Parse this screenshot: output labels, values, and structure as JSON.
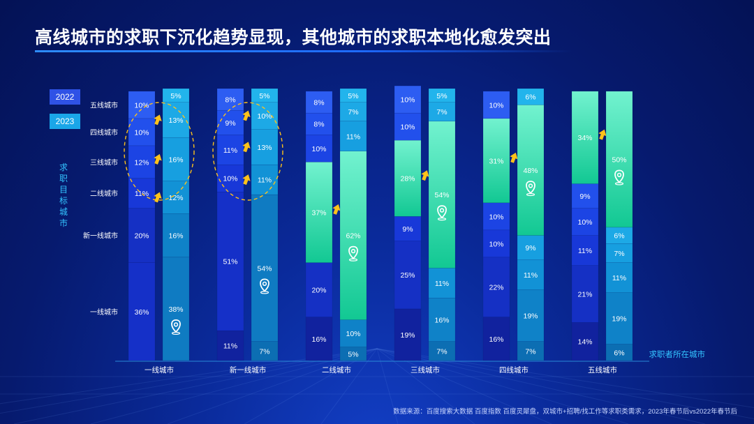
{
  "title": "高线城市的求职下沉化趋势显现，其他城市的求职本地化愈发突出",
  "source": "数据来源：百度搜索大数据 百度指数 百度灵犀盘，双城市+招聘/找工作等求职类需求，2023年春节后vs2022年春节后",
  "legend": {
    "y2022": "2022",
    "y2023": "2023"
  },
  "y_axis_title": "求职目标城市",
  "x_axis_title": "求职者所在城市",
  "colors": {
    "c2022_dark": "#1227b8",
    "c2022_light": "#3a5ff0",
    "c2023_dark": "#0d7bc6",
    "c2023_light": "#22b4ee",
    "local_top": "#72f2cf",
    "local_bottom": "#12c893",
    "arrow": "#ffc21a",
    "circle": "#ffc21a"
  },
  "chart_data": {
    "type": "stacked_bar_100",
    "title": "高线城市的求职下沉化趋势显现，其他城市的求职本地化愈发突出",
    "xlabel": "求职者所在城市",
    "ylabel": "求职目标城市",
    "categories": [
      "一线城市",
      "新一线城市",
      "二线城市",
      "三线城市",
      "四线城市",
      "五线城市"
    ],
    "stack_segments": [
      "一线城市",
      "新一线城市",
      "二线城市",
      "三线城市",
      "四线城市",
      "五线城市"
    ],
    "series": [
      {
        "name": "2022",
        "values": [
          [
            36,
            20,
            11,
            12,
            10,
            10
          ],
          [
            11,
            51,
            10,
            11,
            9,
            8
          ],
          [
            16,
            20,
            37,
            10,
            8,
            8
          ],
          [
            19,
            25,
            9,
            28,
            10,
            10
          ],
          [
            16,
            22,
            10,
            10,
            31,
            10
          ],
          [
            14,
            21,
            11,
            10,
            9,
            34
          ]
        ]
      },
      {
        "name": "2023",
        "values": [
          [
            38,
            16,
            12,
            16,
            13,
            5
          ],
          [
            7,
            54,
            11,
            13,
            10,
            5
          ],
          [
            5,
            10,
            62,
            11,
            7,
            5
          ],
          [
            7,
            16,
            11,
            54,
            7,
            5
          ],
          [
            7,
            19,
            11,
            9,
            48,
            6
          ],
          [
            6,
            19,
            11,
            7,
            6,
            50
          ]
        ]
      }
    ],
    "ylim": [
      0,
      100
    ],
    "highlight_arrows": [
      {
        "category": "一线城市",
        "segments": [
          "二线城市",
          "三线城市",
          "四线城市"
        ]
      },
      {
        "category": "新一线城市",
        "segments": [
          "二线城市",
          "三线城市",
          "四线城市"
        ]
      },
      {
        "category": "二线城市",
        "segments": [
          "二线城市"
        ]
      },
      {
        "category": "三线城市",
        "segments": [
          "三线城市"
        ]
      },
      {
        "category": "四线城市",
        "segments": [
          "四线城市"
        ]
      },
      {
        "category": "五线城市",
        "segments": [
          "五线城市"
        ]
      }
    ],
    "location_marker_segment": "local"
  }
}
